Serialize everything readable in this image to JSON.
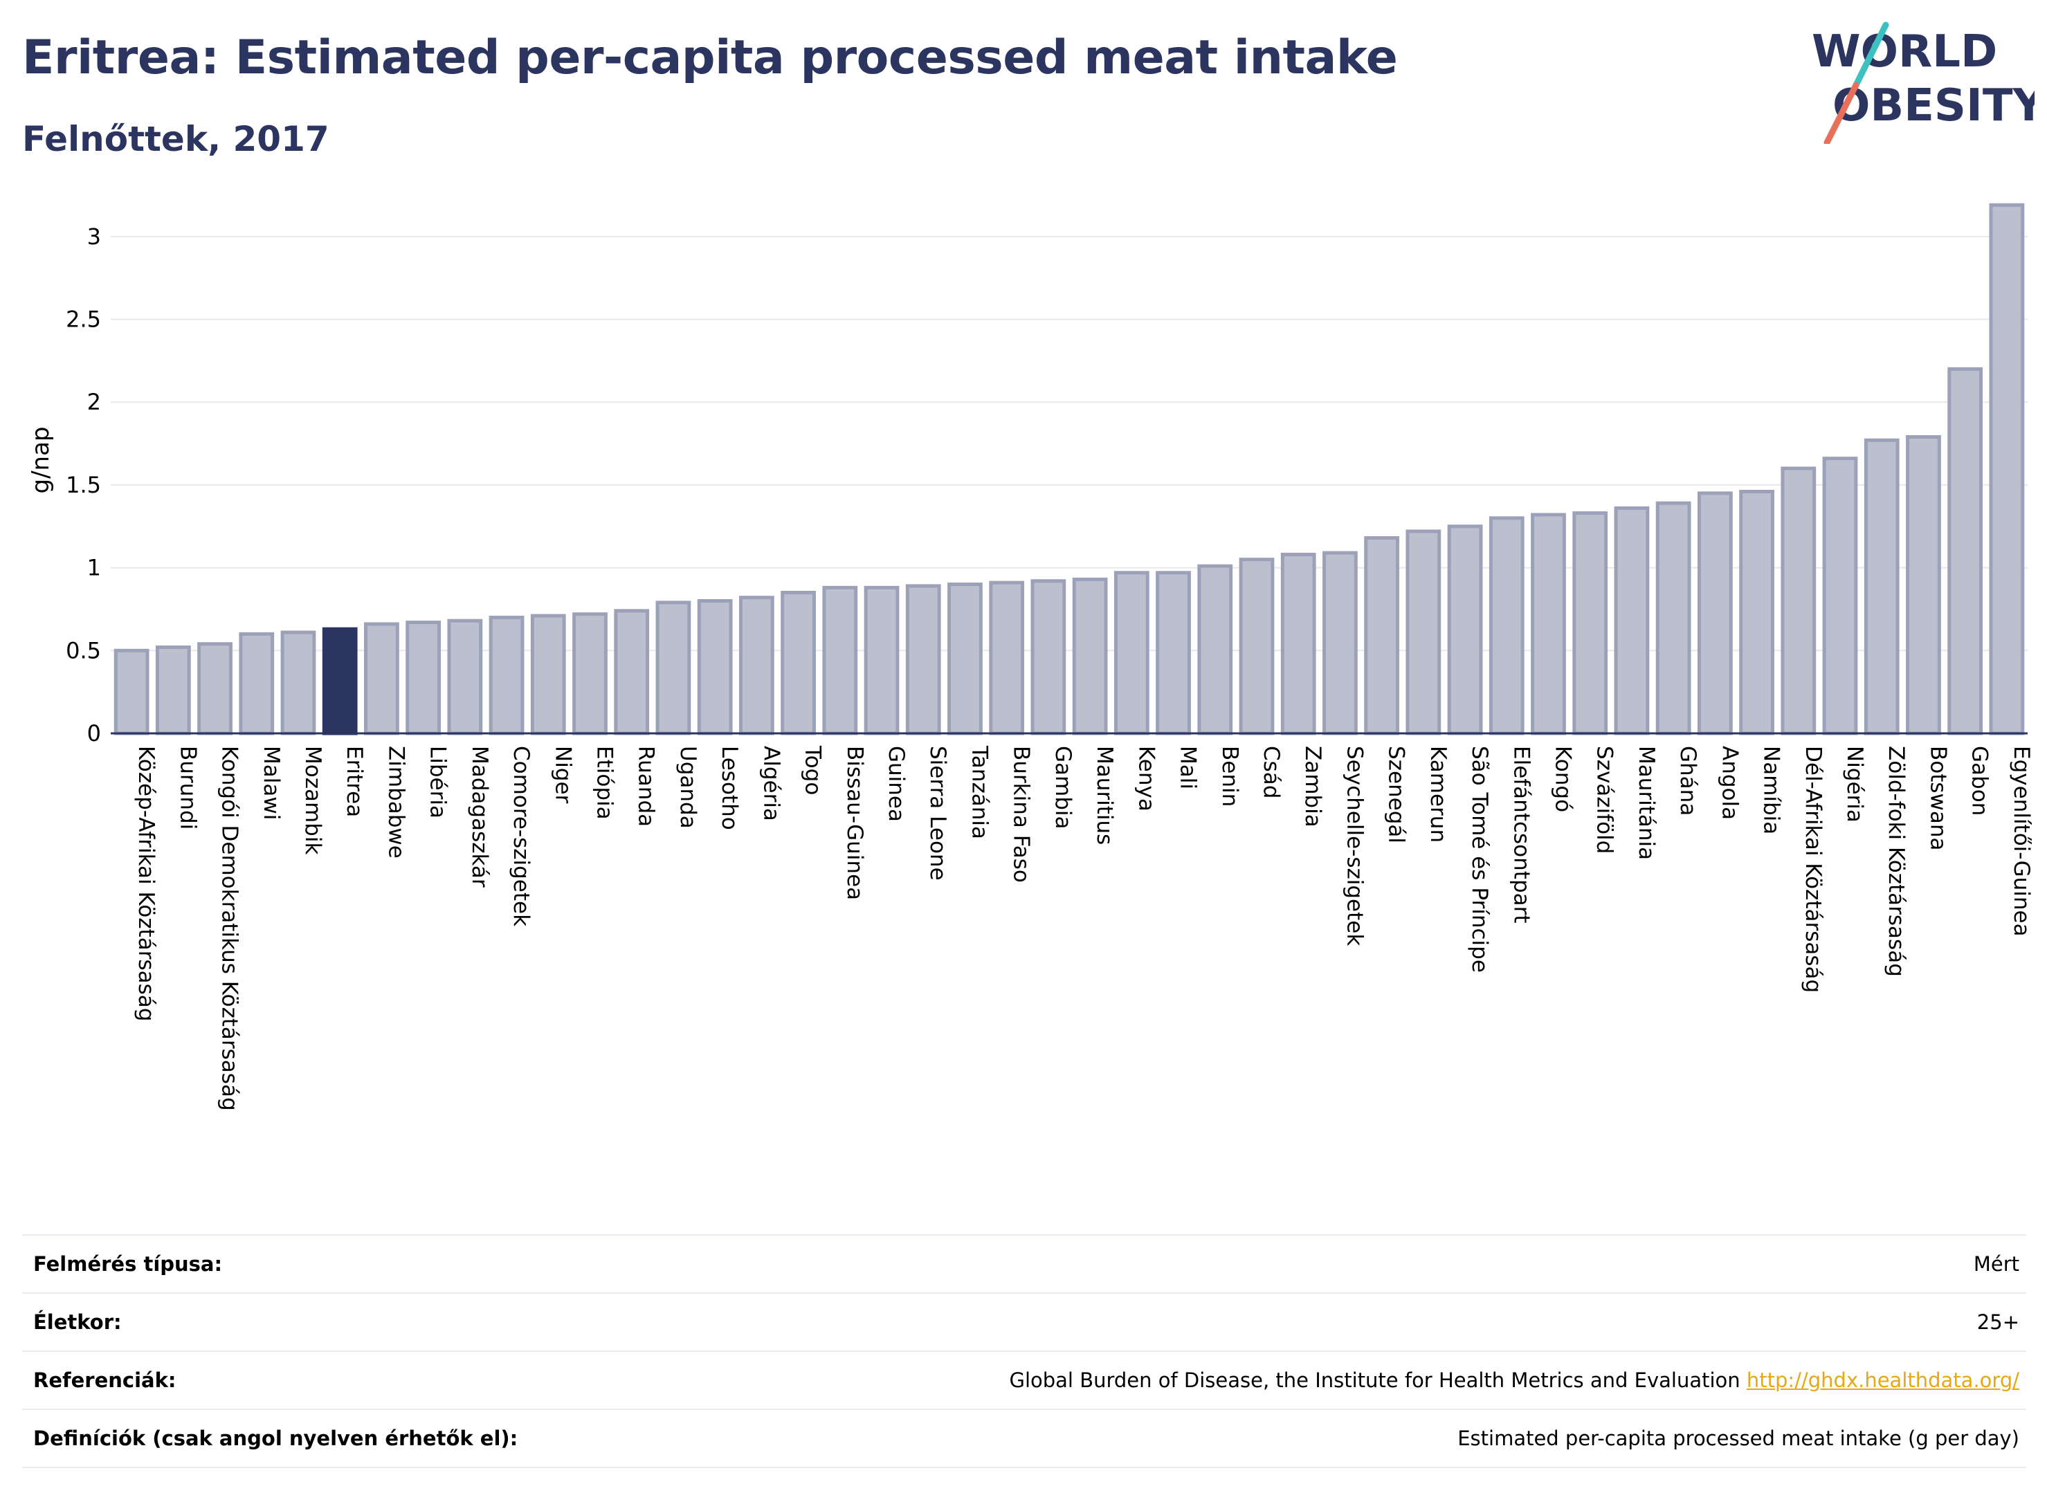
{
  "header": {
    "title": "Eritrea: Estimated per-capita processed meat intake",
    "subtitle": "Felnőttek, 2017"
  },
  "logo": {
    "line1": "WORLD",
    "line2": "OBESITY",
    "name": "world-obesity-logo"
  },
  "colors": {
    "bar_fill": "#bcc0ce",
    "bar_stroke": "#9ba1b8",
    "highlight": "#2c3560",
    "title": "#2c3560",
    "link": "#e6a817",
    "logo_teal": "#3cc0c0",
    "logo_coral": "#e8705a"
  },
  "chart_data": {
    "type": "bar",
    "ylabel": "g/nap",
    "ylim": [
      0,
      3.3
    ],
    "yticks": [
      0,
      0.5,
      1,
      1.5,
      2,
      2.5,
      3
    ],
    "ytick_labels": [
      "0",
      "0.5",
      "1",
      "1.5",
      "2",
      "2.5",
      "3"
    ],
    "grid": true,
    "highlight": "Eritrea",
    "categories": [
      "Közép-Afrikai Köztársaság",
      "Burundi",
      "Kongói Demokratikus Köztársaság",
      "Malawi",
      "Mozambik",
      "Eritrea",
      "Zimbabwe",
      "Libéria",
      "Madagaszkár",
      "Comore-szigetek",
      "Niger",
      "Etiópia",
      "Ruanda",
      "Uganda",
      "Lesotho",
      "Algéria",
      "Togo",
      "Bissau-Guinea",
      "Guinea",
      "Sierra Leone",
      "Tanzánia",
      "Burkina Faso",
      "Gambia",
      "Mauritius",
      "Kenya",
      "Mali",
      "Benin",
      "Csád",
      "Zambia",
      "Seychelle-szigetek",
      "Szenegál",
      "Kamerun",
      "São Tomé és Príncipe",
      "Elefántcsontpart",
      "Kongó",
      "Szváziföld",
      "Mauritánia",
      "Ghána",
      "Angola",
      "Namíbia",
      "Dél-Afrikai Köztársaság",
      "Nigéria",
      "Zöld-foki Köztársaság",
      "Botswana",
      "Gabon",
      "Egyenlítői-Guinea"
    ],
    "values": [
      0.5,
      0.52,
      0.54,
      0.6,
      0.61,
      0.63,
      0.66,
      0.67,
      0.68,
      0.7,
      0.71,
      0.72,
      0.74,
      0.79,
      0.8,
      0.82,
      0.85,
      0.88,
      0.88,
      0.89,
      0.9,
      0.91,
      0.92,
      0.93,
      0.97,
      0.97,
      1.01,
      1.05,
      1.08,
      1.09,
      1.18,
      1.22,
      1.25,
      1.3,
      1.32,
      1.33,
      1.36,
      1.39,
      1.45,
      1.46,
      1.6,
      1.66,
      1.77,
      1.79,
      2.2,
      3.19
    ]
  },
  "info": [
    {
      "label": "Felmérés típusa:",
      "value": "Mért"
    },
    {
      "label": "Életkor:",
      "value": "25+"
    },
    {
      "label": "Referenciák:",
      "value": "Global Burden of Disease, the Institute for Health Metrics and Evaluation",
      "link": "http://ghdx.healthdata.org/"
    },
    {
      "label": "Definíciók (csak angol nyelven érhetők el):",
      "value": "Estimated per-capita processed meat intake (g per day)"
    }
  ]
}
